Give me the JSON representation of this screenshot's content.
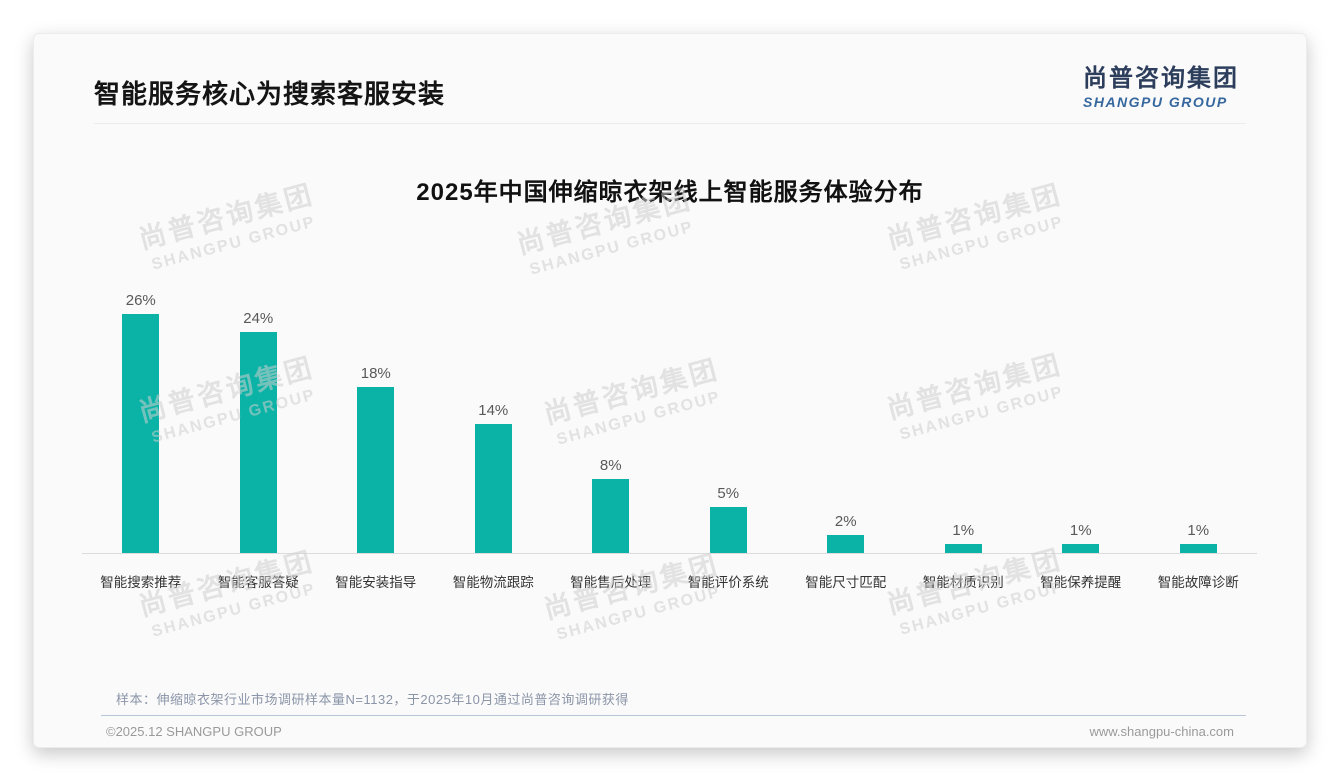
{
  "page": {
    "title": "智能服务核心为搜索客服安装",
    "logo": {
      "cn": "尚普咨询集团",
      "en": "SHANGPU GROUP"
    },
    "sample_note": "样本：伸缩晾衣架行业市场调研样本量N=1132，于2025年10月通过尚普咨询调研获得",
    "footer": {
      "left": "©2025.12 SHANGPU GROUP",
      "right": "www.shangpu-china.com"
    },
    "watermark": {
      "cn": "尚普咨询集团",
      "en": "SHANGPU GROUP"
    }
  },
  "chart_data": {
    "type": "bar",
    "title": "2025年中国伸缩晾衣架线上智能服务体验分布",
    "categories": [
      "智能搜索推荐",
      "智能客服答疑",
      "智能安装指导",
      "智能物流跟踪",
      "智能售后处理",
      "智能评价系统",
      "智能尺寸匹配",
      "智能材质识别",
      "智能保养提醒",
      "智能故障诊断"
    ],
    "values": [
      26,
      24,
      18,
      14,
      8,
      5,
      2,
      1,
      1,
      1
    ],
    "value_labels": [
      "26%",
      "24%",
      "18%",
      "14%",
      "8%",
      "5%",
      "2%",
      "1%",
      "1%",
      "1%"
    ],
    "xlabel": "",
    "ylabel": "",
    "ylim": [
      0,
      28
    ],
    "unit": "%",
    "grid": false,
    "legend": false,
    "bar_color": "#0bb3a7",
    "value_label_color": "#595959",
    "axis_line_color": "#dcdcdc"
  },
  "colors": {
    "accent_teal": "#0bb3a7",
    "logo_navy": "#2d3e5c",
    "logo_blue": "#36689f",
    "note_gray_blue": "#8b95a8",
    "footer_gray": "#9a9a9a",
    "footer_divider_blue": "#b9c6d8"
  }
}
